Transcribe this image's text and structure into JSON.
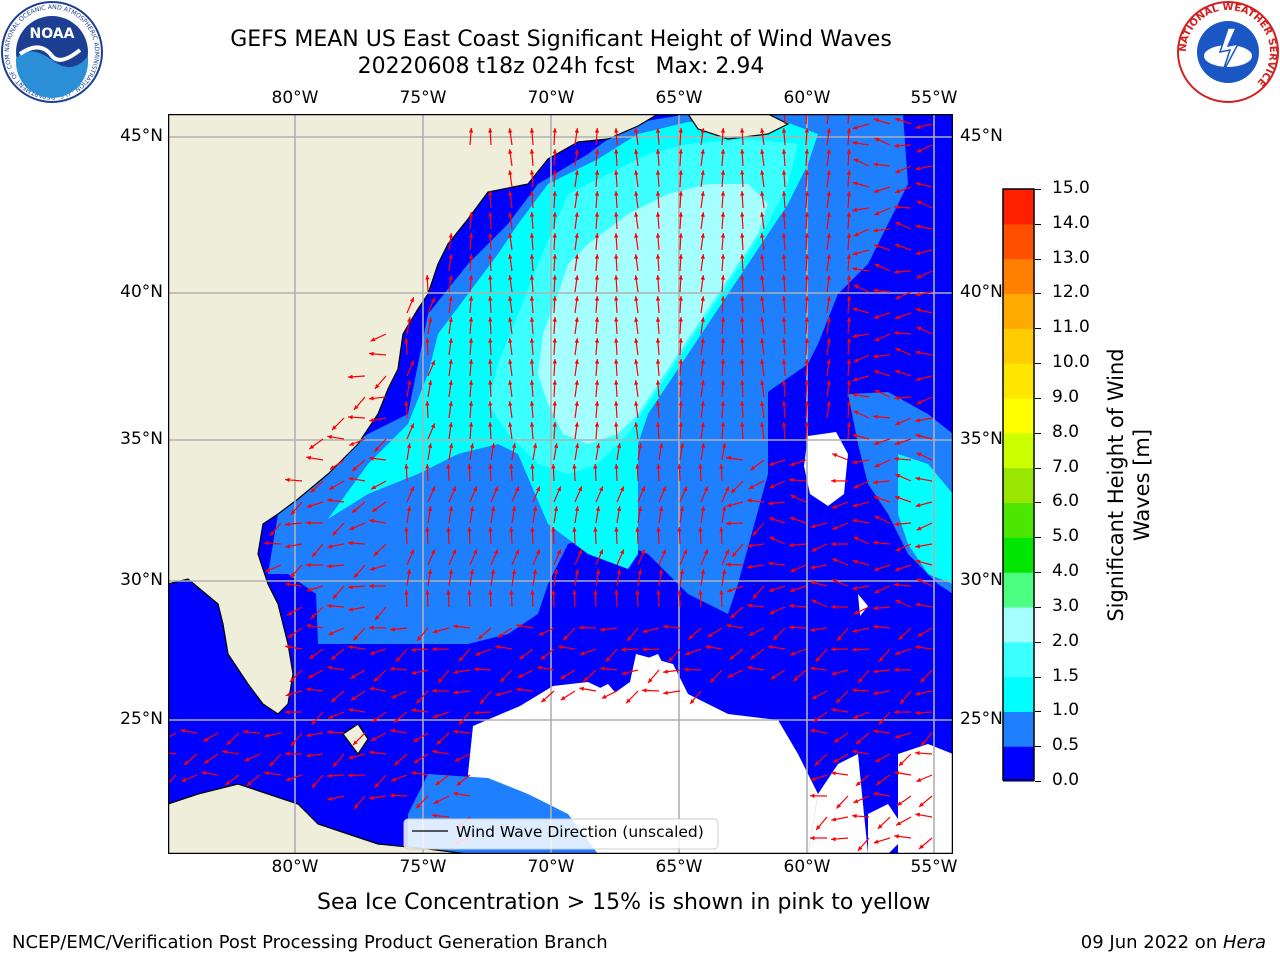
{
  "header": {
    "title_line1": "GEFS MEAN US East Coast Significant Height of Wind Waves",
    "title_line2": "20220608 t18z 024h fcst   Max: 2.94"
  },
  "logos": {
    "left": {
      "name": "NOAA",
      "ring_text": "NATIONAL OCEANIC AND ATMOSPHERIC ADMINISTRATION · U.S. DEPARTMENT OF COMMERCE"
    },
    "right": {
      "ring_text": "NATIONAL WEATHER SERVICE"
    }
  },
  "map": {
    "lon_labels": [
      "80°W",
      "75°W",
      "70°W",
      "65°W",
      "60°W",
      "55°W"
    ],
    "lat_labels": [
      "45°N",
      "40°N",
      "35°N",
      "30°N",
      "25°N"
    ],
    "extent": {
      "lon_min": -85,
      "lon_max": -54.3,
      "lat_min": 20.5,
      "lat_max": 45.8
    },
    "colors": {
      "land": "#efeedb",
      "no_data": "#ffffff",
      "arrow": "#ff0000",
      "grid": "#b0b0b0"
    },
    "legend_label": "Wind Wave Direction (unscaled)"
  },
  "colorbar": {
    "label": "Significant Height of Wind Waves [m]",
    "ticks": [
      "0.0",
      "0.5",
      "1.0",
      "1.5",
      "2.0",
      "3.0",
      "4.0",
      "5.0",
      "6.0",
      "7.0",
      "8.0",
      "9.0",
      "10.0",
      "11.0",
      "12.0",
      "13.0",
      "14.0",
      "15.0"
    ],
    "colors": [
      "#0000ff",
      "#1e7fff",
      "#00ffff",
      "#3cffff",
      "#a6ffff",
      "#4dff80",
      "#00e600",
      "#4ce600",
      "#99e600",
      "#ccff00",
      "#ffff00",
      "#ffe600",
      "#ffcc00",
      "#ffaa00",
      "#ff8000",
      "#ff5000",
      "#ff2000"
    ]
  },
  "note": "Sea Ice Concentration > 15% is shown in pink to yellow",
  "footer": {
    "left": "NCEP/EMC/Verification Post Processing Product Generation Branch",
    "right_prefix": "09 Jun 2022 on ",
    "right_host": "Hera"
  }
}
